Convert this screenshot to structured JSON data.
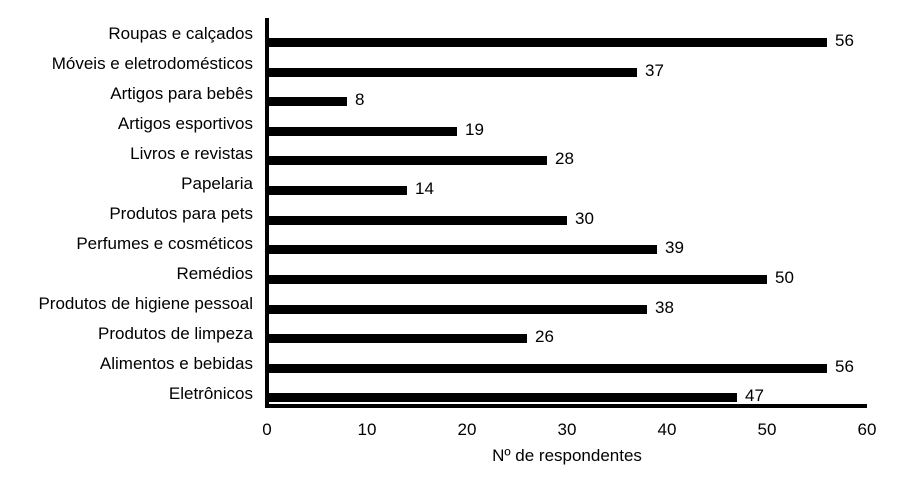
{
  "chart_data": {
    "type": "bar",
    "orientation": "horizontal",
    "title": "",
    "xlabel": "Nº de respondentes",
    "ylabel": "",
    "categories": [
      "Roupas e calçados",
      "Móveis e eletrodomésticos",
      "Artigos para bebês",
      "Artigos esportivos",
      "Livros e revistas",
      "Papelaria",
      "Produtos para pets",
      "Perfumes e cosméticos",
      "Remédios",
      "Produtos de higiene pessoal",
      "Produtos de limpeza",
      "Alimentos e bebidas",
      "Eletrônicos"
    ],
    "values": [
      56,
      37,
      8,
      19,
      28,
      14,
      30,
      39,
      50,
      38,
      26,
      56,
      47
    ],
    "xlim": [
      0,
      60
    ],
    "xticks": [
      0,
      10,
      20,
      30,
      40,
      50,
      60
    ],
    "grid": false,
    "legend": false,
    "value_labels_shown": true,
    "bar_color": "#000000",
    "axis_color": "#000000",
    "text_color": "#000000",
    "background_color": "#ffffff"
  }
}
